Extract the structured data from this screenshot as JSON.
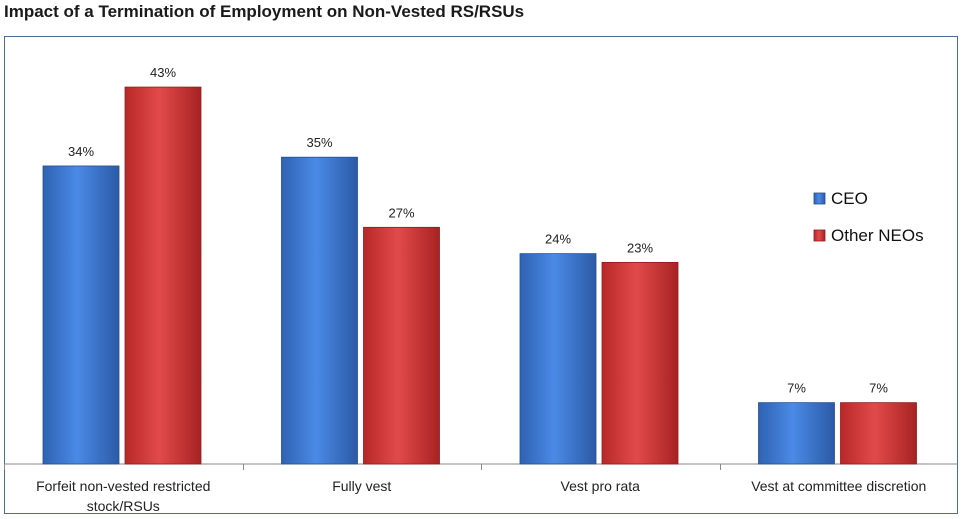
{
  "chart_data": {
    "type": "bar",
    "title": "Impact of a Termination of Employment on Non-Vested RS/RSUs",
    "categories": [
      [
        "Forfeit non-vested restricted",
        "stock/RSUs"
      ],
      [
        "Fully vest"
      ],
      [
        "Vest pro rata"
      ],
      [
        "Vest at committee discretion"
      ]
    ],
    "series": [
      {
        "name": "CEO",
        "values": [
          34,
          35,
          24,
          7
        ],
        "labels": [
          "34%",
          "35%",
          "24%",
          "7%"
        ],
        "color": "#3a78d4"
      },
      {
        "name": "Other NEOs",
        "values": [
          43,
          27,
          23,
          7
        ],
        "labels": [
          "43%",
          "27%",
          "23%",
          "7%"
        ],
        "color": "#d93636"
      }
    ],
    "value_unit": "%",
    "ylim": [
      0,
      47
    ],
    "y_axis_visible": false,
    "grid": false,
    "legend": "right"
  },
  "colors": {
    "ceo_bar": "#3a78d4",
    "neo_bar": "#d93636",
    "frame": "#4f6b96"
  }
}
